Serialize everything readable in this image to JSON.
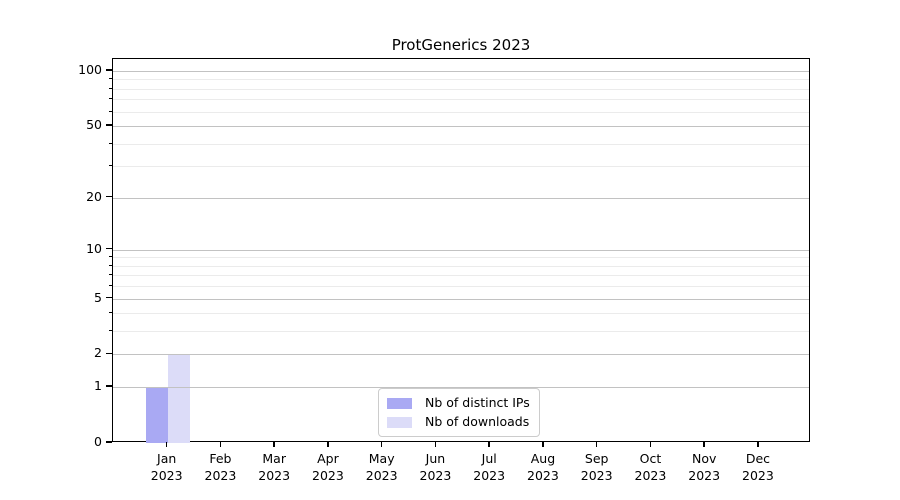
{
  "title": "ProtGenerics 2023",
  "chart_data": {
    "type": "bar",
    "title": "ProtGenerics 2023",
    "categories": [
      "Jan",
      "Feb",
      "Mar",
      "Apr",
      "May",
      "Jun",
      "Jul",
      "Aug",
      "Sep",
      "Oct",
      "Nov",
      "Dec"
    ],
    "x_year_label": "2023",
    "series": [
      {
        "name": "Nb of distinct IPs",
        "color": "#a9a9f3",
        "values": [
          1,
          0,
          0,
          0,
          0,
          0,
          0,
          0,
          0,
          0,
          0,
          0
        ]
      },
      {
        "name": "Nb of downloads",
        "color": "#dcdcf8",
        "values": [
          2,
          0,
          0,
          0,
          0,
          0,
          0,
          0,
          0,
          0,
          0,
          0
        ]
      }
    ],
    "xlabel": "",
    "ylabel": "",
    "yscale": "log1p",
    "ylim": [
      0,
      115
    ],
    "y_major_ticks": [
      0,
      1,
      2,
      5,
      10,
      20,
      50,
      100
    ],
    "y_minor_gridline_values": [
      3,
      4,
      6,
      7,
      8,
      9,
      30,
      40,
      60,
      70,
      80,
      90
    ],
    "grid": "horizontal",
    "legend_position": "lower center"
  },
  "colors": {
    "bar_distinct_ips": "#a9a9f3",
    "bar_downloads": "#dcdcf8",
    "grid_major": "#c2c2c2",
    "grid_minor": "#ebebeb",
    "spine": "#000000",
    "background": "#ffffff"
  }
}
